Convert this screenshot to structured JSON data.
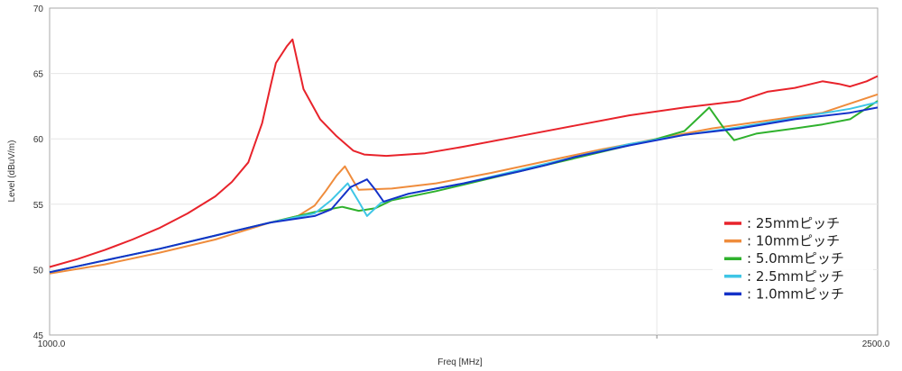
{
  "chart_data": {
    "type": "line",
    "xlabel": "Freq [MHz]",
    "ylabel": "Level (dBuV/m)",
    "xlim": [
      1000,
      2500
    ],
    "ylim": [
      45,
      70
    ],
    "x_tick_labels": [
      "1000.0",
      "2500.0"
    ],
    "y_ticks": [
      45,
      50,
      55,
      60,
      65,
      70
    ],
    "y_tick_labels": [
      "45",
      "50",
      "55",
      "60",
      "65",
      "70"
    ],
    "grid": true,
    "legend_position": "bottom-right",
    "series": [
      {
        "name": ": 25mmピッチ",
        "color": "#e8232b",
        "points": [
          [
            1000,
            50.2
          ],
          [
            1050,
            50.8
          ],
          [
            1100,
            51.5
          ],
          [
            1150,
            52.3
          ],
          [
            1200,
            53.2
          ],
          [
            1250,
            54.3
          ],
          [
            1300,
            55.6
          ],
          [
            1330,
            56.7
          ],
          [
            1360,
            58.2
          ],
          [
            1385,
            61.2
          ],
          [
            1400,
            64.0
          ],
          [
            1410,
            65.8
          ],
          [
            1430,
            67.1
          ],
          [
            1440,
            67.6
          ],
          [
            1460,
            63.8
          ],
          [
            1490,
            61.5
          ],
          [
            1520,
            60.2
          ],
          [
            1550,
            59.1
          ],
          [
            1570,
            58.8
          ],
          [
            1610,
            58.7
          ],
          [
            1680,
            58.9
          ],
          [
            1750,
            59.4
          ],
          [
            1850,
            60.2
          ],
          [
            1950,
            61.0
          ],
          [
            2050,
            61.8
          ],
          [
            2150,
            62.4
          ],
          [
            2250,
            62.9
          ],
          [
            2300,
            63.6
          ],
          [
            2350,
            63.9
          ],
          [
            2400,
            64.4
          ],
          [
            2430,
            64.2
          ],
          [
            2450,
            64.0
          ],
          [
            2480,
            64.4
          ],
          [
            2500,
            64.8
          ]
        ]
      },
      {
        "name": ": 10mmピッチ",
        "color": "#ef8c3c",
        "points": [
          [
            1000,
            49.7
          ],
          [
            1100,
            50.4
          ],
          [
            1200,
            51.3
          ],
          [
            1300,
            52.3
          ],
          [
            1400,
            53.6
          ],
          [
            1450,
            54.1
          ],
          [
            1480,
            54.9
          ],
          [
            1500,
            56.0
          ],
          [
            1520,
            57.2
          ],
          [
            1535,
            57.9
          ],
          [
            1550,
            56.8
          ],
          [
            1560,
            56.1
          ],
          [
            1620,
            56.2
          ],
          [
            1700,
            56.6
          ],
          [
            1800,
            57.4
          ],
          [
            1900,
            58.3
          ],
          [
            2000,
            59.2
          ],
          [
            2100,
            60.0
          ],
          [
            2200,
            60.8
          ],
          [
            2300,
            61.4
          ],
          [
            2400,
            62.0
          ],
          [
            2500,
            63.4
          ]
        ]
      },
      {
        "name": ": 5.0mmピッチ",
        "color": "#2fb12d",
        "points": [
          [
            1000,
            49.8
          ],
          [
            1100,
            50.7
          ],
          [
            1200,
            51.6
          ],
          [
            1300,
            52.6
          ],
          [
            1400,
            53.6
          ],
          [
            1480,
            54.4
          ],
          [
            1530,
            54.8
          ],
          [
            1560,
            54.5
          ],
          [
            1590,
            54.7
          ],
          [
            1620,
            55.3
          ],
          [
            1700,
            56.0
          ],
          [
            1800,
            57.0
          ],
          [
            1900,
            58.0
          ],
          [
            2000,
            59.0
          ],
          [
            2100,
            60.0
          ],
          [
            2150,
            60.6
          ],
          [
            2175,
            61.6
          ],
          [
            2195,
            62.4
          ],
          [
            2220,
            60.9
          ],
          [
            2240,
            59.9
          ],
          [
            2280,
            60.4
          ],
          [
            2350,
            60.8
          ],
          [
            2400,
            61.1
          ],
          [
            2450,
            61.5
          ],
          [
            2500,
            62.9
          ]
        ]
      },
      {
        "name": ": 2.5mmピッチ",
        "color": "#3fc6e6",
        "points": [
          [
            1000,
            49.8
          ],
          [
            1100,
            50.7
          ],
          [
            1200,
            51.6
          ],
          [
            1300,
            52.6
          ],
          [
            1400,
            53.6
          ],
          [
            1480,
            54.3
          ],
          [
            1510,
            55.3
          ],
          [
            1540,
            56.6
          ],
          [
            1560,
            55.2
          ],
          [
            1575,
            54.1
          ],
          [
            1600,
            55.1
          ],
          [
            1650,
            55.8
          ],
          [
            1750,
            56.6
          ],
          [
            1850,
            57.6
          ],
          [
            1950,
            58.6
          ],
          [
            2050,
            59.6
          ],
          [
            2150,
            60.3
          ],
          [
            2250,
            60.9
          ],
          [
            2350,
            61.6
          ],
          [
            2450,
            62.3
          ],
          [
            2500,
            62.8
          ]
        ]
      },
      {
        "name": ": 1.0mmピッチ",
        "color": "#1432c8",
        "points": [
          [
            1000,
            49.8
          ],
          [
            1100,
            50.7
          ],
          [
            1200,
            51.6
          ],
          [
            1300,
            52.6
          ],
          [
            1400,
            53.6
          ],
          [
            1480,
            54.1
          ],
          [
            1510,
            54.6
          ],
          [
            1545,
            56.3
          ],
          [
            1575,
            56.9
          ],
          [
            1590,
            56.1
          ],
          [
            1605,
            55.2
          ],
          [
            1650,
            55.8
          ],
          [
            1750,
            56.6
          ],
          [
            1850,
            57.5
          ],
          [
            1900,
            58.0
          ],
          [
            1950,
            58.6
          ],
          [
            2050,
            59.5
          ],
          [
            2150,
            60.3
          ],
          [
            2250,
            60.8
          ],
          [
            2350,
            61.5
          ],
          [
            2450,
            62.0
          ],
          [
            2500,
            62.4
          ]
        ]
      }
    ]
  }
}
